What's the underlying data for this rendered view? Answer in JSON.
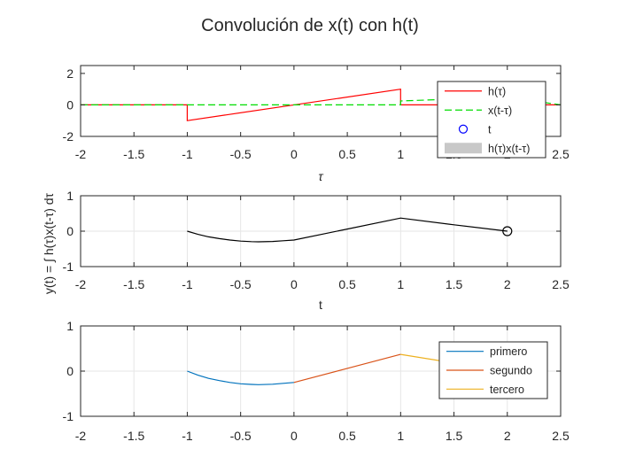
{
  "figure": {
    "title": "Convolución de x(t) con h(t)"
  },
  "chart_data": [
    {
      "type": "line",
      "xlabel": "τ",
      "ylabel": "",
      "xlim": [
        -2,
        2.5
      ],
      "ylim": [
        -2,
        2.5
      ],
      "xticks": [
        "-2",
        "-1.5",
        "-1",
        "-0.5",
        "0",
        "0.5",
        "1",
        "1.5",
        "2",
        "2.5"
      ],
      "yticks": [
        "-2",
        "0",
        "2"
      ],
      "grid": false,
      "legend_position": "top-right",
      "legend": [
        {
          "label": "h(τ)",
          "style": "solid-line",
          "color": "#ff0000"
        },
        {
          "label": "x(t-τ)",
          "style": "dashed-line",
          "color": "#00dd00"
        },
        {
          "label": "t",
          "style": "circle-marker",
          "color": "#0000ff"
        },
        {
          "label": "h(τ)x(t-τ)",
          "style": "patch",
          "color": "#c8c8c8"
        }
      ],
      "series": [
        {
          "name": "h(τ)",
          "color": "#ff0000",
          "dash": "solid",
          "x": [
            -2,
            -1,
            -1,
            1,
            1,
            2.5
          ],
          "y": [
            0,
            0,
            -1,
            1,
            0,
            0
          ]
        },
        {
          "name": "x(t-τ)",
          "color": "#00dd00",
          "dash": "dashed",
          "x": [
            -2,
            1,
            1,
            2,
            2.5
          ],
          "y": [
            0,
            0,
            0.25,
            0.5,
            0
          ]
        }
      ]
    },
    {
      "type": "line",
      "xlabel": "t",
      "ylabel": "y(t) = ∫ h(τ)x(t-τ) dτ",
      "xlim": [
        -2,
        2.5
      ],
      "ylim": [
        -1,
        1
      ],
      "xticks": [
        "-2",
        "-1.5",
        "-1",
        "-0.5",
        "0",
        "0.5",
        "1",
        "1.5",
        "2",
        "2.5"
      ],
      "yticks": [
        "-1",
        "0",
        "1"
      ],
      "grid": true,
      "series": [
        {
          "color": "#000000",
          "dash": "solid",
          "x": [
            -1,
            -0.9,
            -0.8,
            -0.7,
            -0.6,
            -0.5,
            -0.4,
            -0.333,
            -0.2,
            -0.1,
            0,
            0.5,
            1,
            1.5,
            2
          ],
          "y": [
            0,
            -0.09,
            -0.16,
            -0.21,
            -0.25,
            -0.28,
            -0.295,
            -0.3,
            -0.29,
            -0.27,
            -0.25,
            0.06,
            0.37,
            0.18,
            0
          ]
        }
      ],
      "marker": {
        "x": 2,
        "y": 0,
        "shape": "circle",
        "color": "#000000"
      }
    },
    {
      "type": "line",
      "xlabel": "",
      "ylabel": "",
      "xlim": [
        -2,
        2.5
      ],
      "ylim": [
        -1,
        1
      ],
      "xticks": [
        "-2",
        "-1.5",
        "-1",
        "-0.5",
        "0",
        "0.5",
        "1",
        "1.5",
        "2",
        "2.5"
      ],
      "yticks": [
        "-1",
        "0",
        "1"
      ],
      "grid": true,
      "legend_position": "top-right",
      "series": [
        {
          "name": "primero",
          "color": "#0072bd",
          "x": [
            -1,
            -0.9,
            -0.8,
            -0.7,
            -0.6,
            -0.5,
            -0.4,
            -0.333,
            -0.2,
            -0.1,
            0
          ],
          "y": [
            0,
            -0.09,
            -0.16,
            -0.21,
            -0.25,
            -0.28,
            -0.295,
            -0.3,
            -0.29,
            -0.27,
            -0.25
          ]
        },
        {
          "name": "segundo",
          "color": "#d95319",
          "x": [
            0,
            0.5,
            1
          ],
          "y": [
            -0.25,
            0.06,
            0.37
          ]
        },
        {
          "name": "tercero",
          "color": "#edb120",
          "x": [
            1,
            1.5,
            2
          ],
          "y": [
            0.37,
            0.18,
            0
          ]
        }
      ]
    }
  ]
}
